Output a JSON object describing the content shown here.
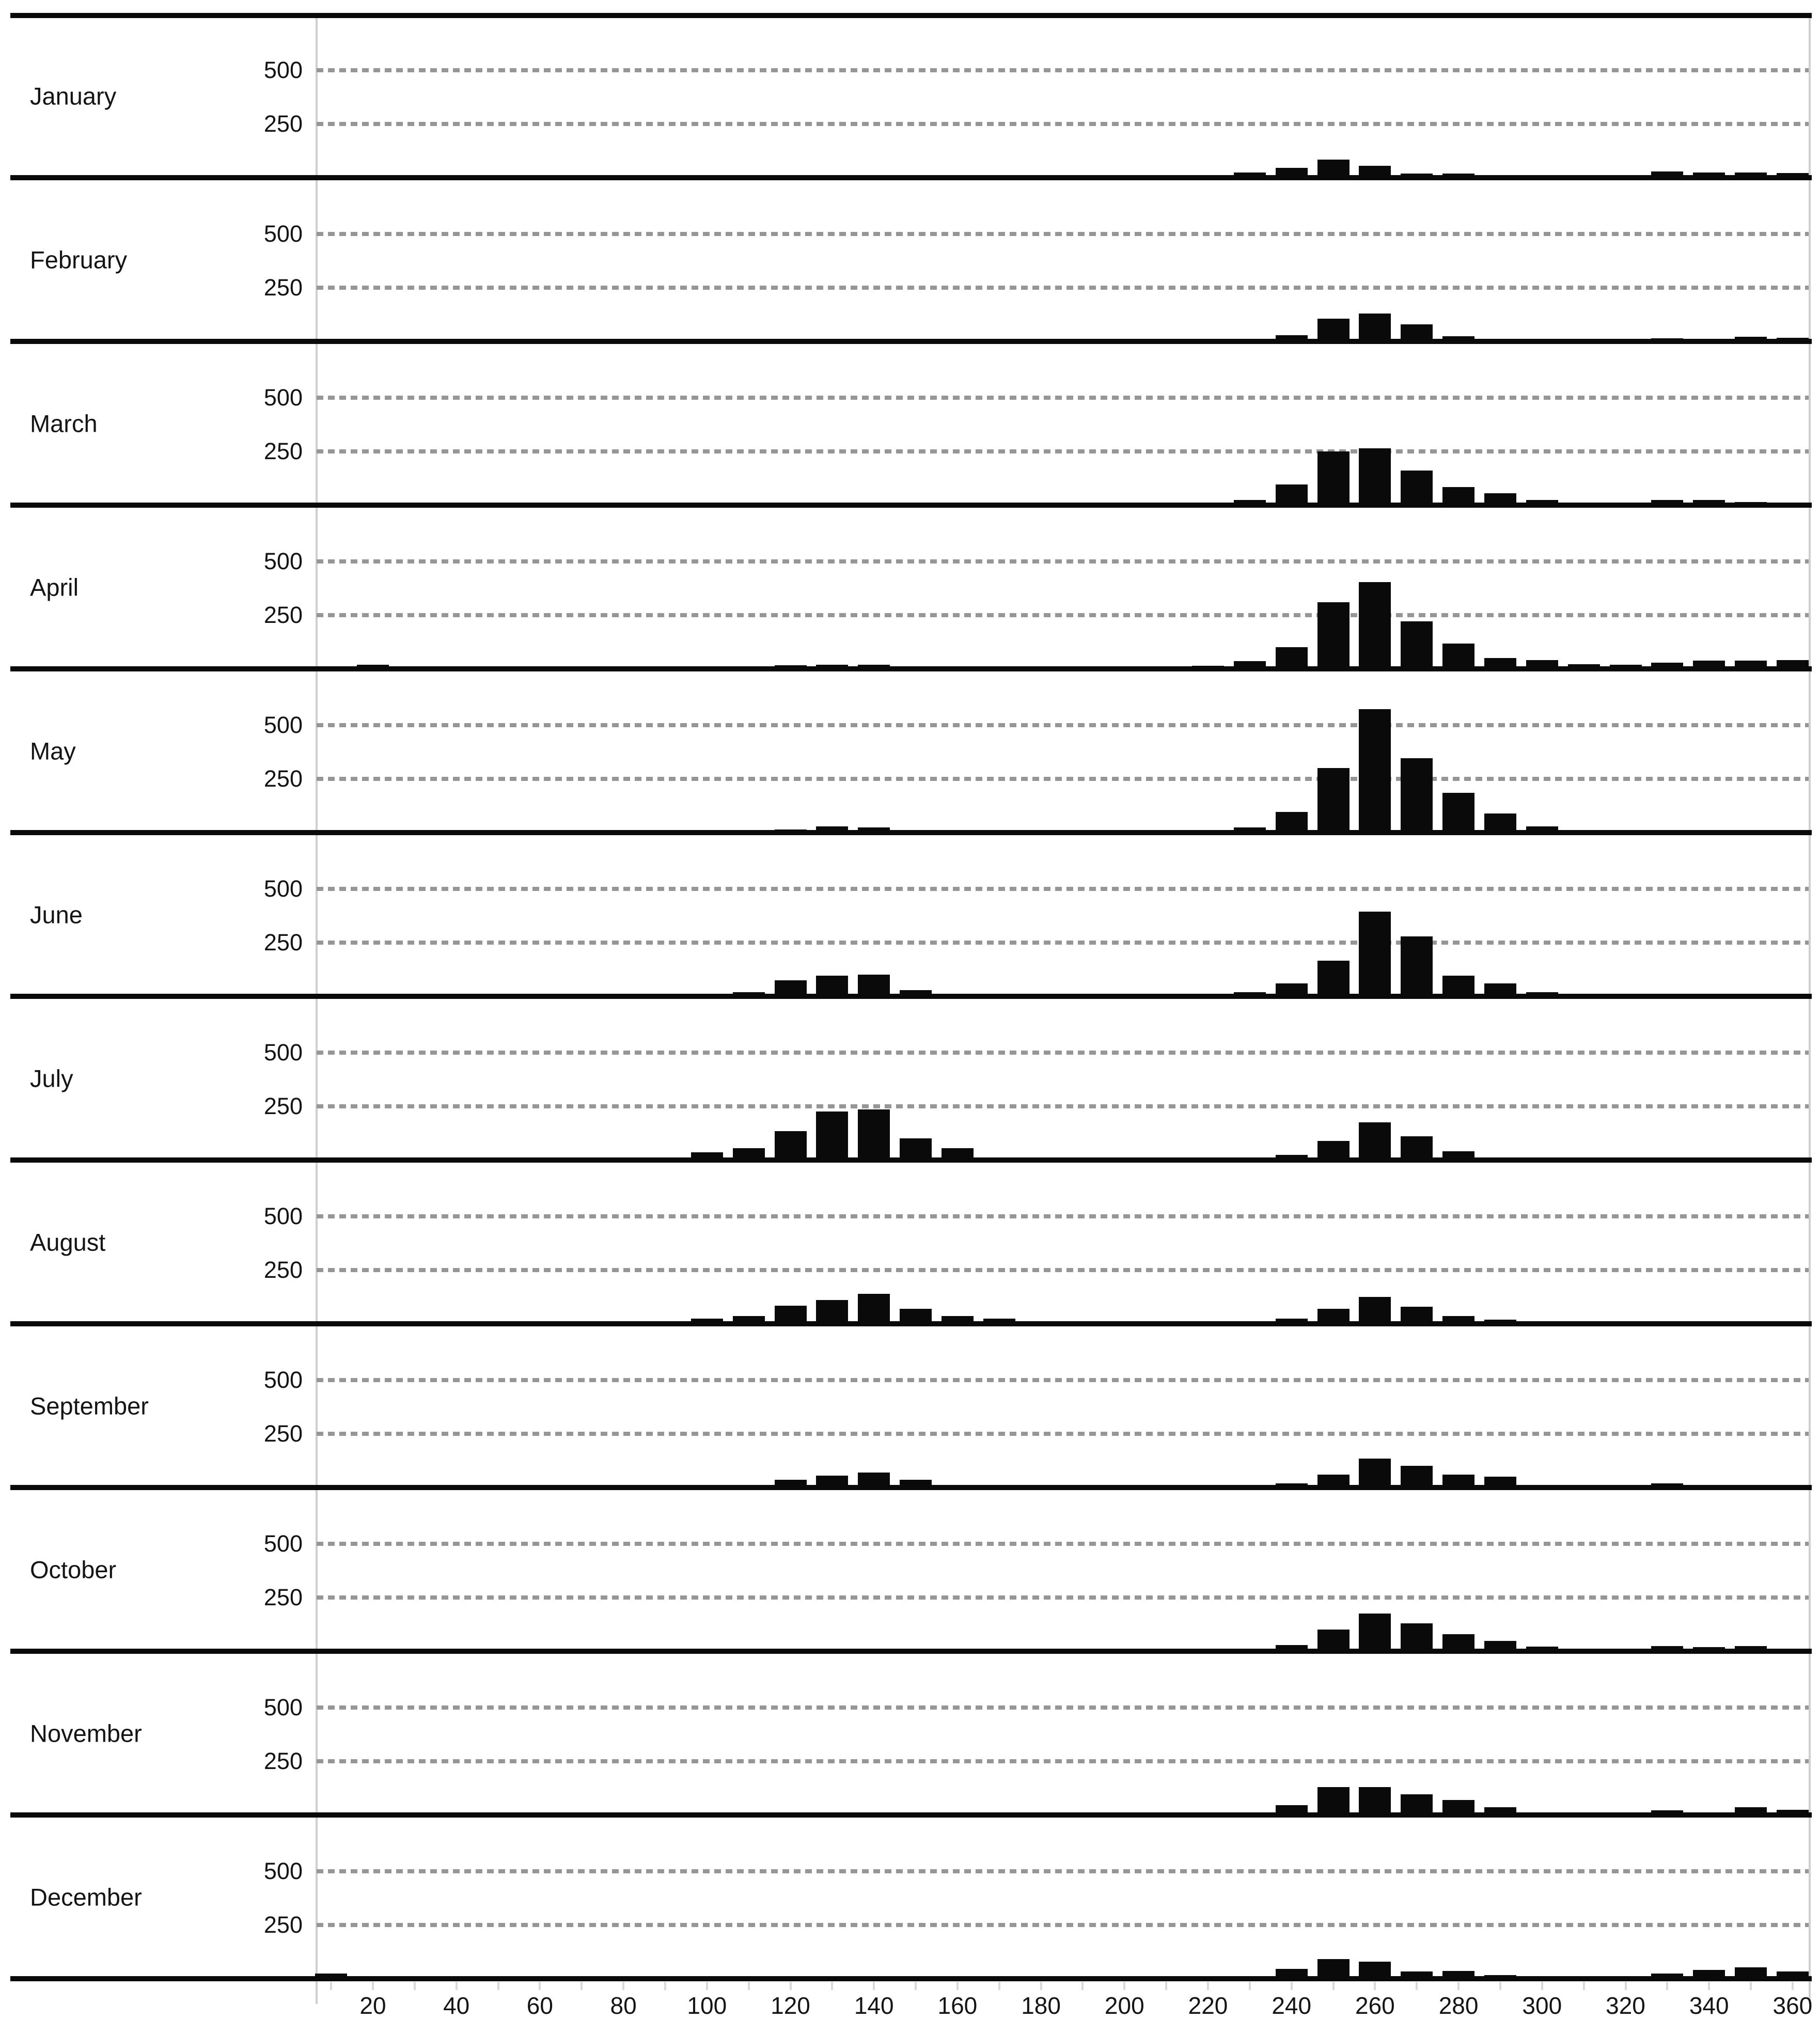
{
  "chart_data": {
    "type": "bar",
    "subtype": "small-multiples-histograms",
    "title": "",
    "xlabel": "",
    "ylabel": "",
    "x_tick_labels": [
      20,
      40,
      60,
      80,
      100,
      120,
      140,
      160,
      180,
      200,
      220,
      240,
      260,
      280,
      300,
      320,
      340,
      360
    ],
    "y_tick_labels": [
      500,
      250
    ],
    "x_range": [
      0,
      365
    ],
    "y_range": [
      0,
      625
    ],
    "bin_width": 10,
    "grid": "dashed horizontal lines at 250 and 500",
    "legend": "none",
    "colors": {
      "bar": "#0a0a0a",
      "axis": "#0a0a0a",
      "gridline": "#969696",
      "frame": "#cfcfcf",
      "text": "#141414",
      "tick_mark": "#d9d9d9"
    },
    "months": [
      {
        "label": "January",
        "bars": [
          [
            230,
            25
          ],
          [
            240,
            45
          ],
          [
            250,
            85
          ],
          [
            260,
            55
          ],
          [
            270,
            20
          ],
          [
            280,
            20
          ],
          [
            330,
            30
          ],
          [
            340,
            24
          ],
          [
            350,
            24
          ],
          [
            360,
            22
          ]
        ]
      },
      {
        "label": "February",
        "bars": [
          [
            230,
            10
          ],
          [
            240,
            30
          ],
          [
            250,
            105
          ],
          [
            260,
            130
          ],
          [
            270,
            80
          ],
          [
            280,
            25
          ],
          [
            290,
            10
          ],
          [
            330,
            14
          ],
          [
            340,
            12
          ],
          [
            350,
            22
          ],
          [
            360,
            16
          ]
        ]
      },
      {
        "label": "March",
        "bars": [
          [
            230,
            25
          ],
          [
            240,
            95
          ],
          [
            250,
            250
          ],
          [
            260,
            265
          ],
          [
            270,
            160
          ],
          [
            280,
            85
          ],
          [
            290,
            55
          ],
          [
            300,
            25
          ],
          [
            310,
            12
          ],
          [
            330,
            25
          ],
          [
            340,
            25
          ],
          [
            350,
            15
          ]
        ]
      },
      {
        "label": "April",
        "bars": [
          [
            20,
            20
          ],
          [
            120,
            18
          ],
          [
            130,
            20
          ],
          [
            140,
            20
          ],
          [
            220,
            15
          ],
          [
            230,
            35
          ],
          [
            240,
            100
          ],
          [
            250,
            310
          ],
          [
            260,
            405
          ],
          [
            270,
            220
          ],
          [
            280,
            118
          ],
          [
            290,
            50
          ],
          [
            300,
            40
          ],
          [
            310,
            22
          ],
          [
            320,
            19
          ],
          [
            330,
            30
          ],
          [
            340,
            38
          ],
          [
            350,
            38
          ],
          [
            360,
            40
          ]
        ]
      },
      {
        "label": "May",
        "bars": [
          [
            120,
            15
          ],
          [
            130,
            30
          ],
          [
            140,
            25
          ],
          [
            150,
            12
          ],
          [
            230,
            25
          ],
          [
            240,
            95
          ],
          [
            250,
            300
          ],
          [
            260,
            575
          ],
          [
            270,
            345
          ],
          [
            280,
            185
          ],
          [
            290,
            90
          ],
          [
            300,
            30
          ]
        ]
      },
      {
        "label": "June",
        "bars": [
          [
            110,
            20
          ],
          [
            120,
            75
          ],
          [
            130,
            95
          ],
          [
            140,
            100
          ],
          [
            150,
            30
          ],
          [
            230,
            20
          ],
          [
            240,
            60
          ],
          [
            250,
            165
          ],
          [
            260,
            395
          ],
          [
            270,
            280
          ],
          [
            280,
            95
          ],
          [
            290,
            60
          ],
          [
            300,
            20
          ]
        ]
      },
      {
        "label": "July",
        "bars": [
          [
            100,
            35
          ],
          [
            110,
            55
          ],
          [
            120,
            135
          ],
          [
            130,
            225
          ],
          [
            140,
            235
          ],
          [
            150,
            100
          ],
          [
            160,
            55
          ],
          [
            170,
            12
          ],
          [
            240,
            25
          ],
          [
            250,
            90
          ],
          [
            260,
            175
          ],
          [
            270,
            110
          ],
          [
            280,
            40
          ],
          [
            290,
            10
          ]
        ]
      },
      {
        "label": "August",
        "bars": [
          [
            100,
            25
          ],
          [
            110,
            35
          ],
          [
            120,
            85
          ],
          [
            130,
            110
          ],
          [
            140,
            140
          ],
          [
            150,
            70
          ],
          [
            160,
            35
          ],
          [
            170,
            25
          ],
          [
            240,
            25
          ],
          [
            250,
            70
          ],
          [
            260,
            125
          ],
          [
            270,
            80
          ],
          [
            280,
            35
          ],
          [
            290,
            20
          ]
        ]
      },
      {
        "label": "September",
        "bars": [
          [
            120,
            35
          ],
          [
            130,
            55
          ],
          [
            140,
            70
          ],
          [
            150,
            35
          ],
          [
            240,
            20
          ],
          [
            250,
            60
          ],
          [
            260,
            135
          ],
          [
            270,
            100
          ],
          [
            280,
            60
          ],
          [
            290,
            50
          ],
          [
            330,
            20
          ]
        ]
      },
      {
        "label": "October",
        "bars": [
          [
            240,
            30
          ],
          [
            250,
            100
          ],
          [
            260,
            175
          ],
          [
            270,
            130
          ],
          [
            280,
            80
          ],
          [
            290,
            48
          ],
          [
            300,
            22
          ],
          [
            330,
            24
          ],
          [
            340,
            19
          ],
          [
            350,
            24
          ]
        ]
      },
      {
        "label": "November",
        "bars": [
          [
            240,
            45
          ],
          [
            250,
            130
          ],
          [
            260,
            130
          ],
          [
            270,
            95
          ],
          [
            280,
            70
          ],
          [
            290,
            35
          ],
          [
            330,
            22
          ],
          [
            350,
            35
          ],
          [
            360,
            25
          ]
        ]
      },
      {
        "label": "December",
        "bars": [
          [
            10,
            25
          ],
          [
            240,
            45
          ],
          [
            250,
            92
          ],
          [
            260,
            80
          ],
          [
            270,
            33
          ],
          [
            280,
            35
          ],
          [
            290,
            18
          ],
          [
            300,
            10
          ],
          [
            330,
            24
          ],
          [
            340,
            40
          ],
          [
            350,
            52
          ],
          [
            360,
            34
          ]
        ]
      }
    ]
  }
}
